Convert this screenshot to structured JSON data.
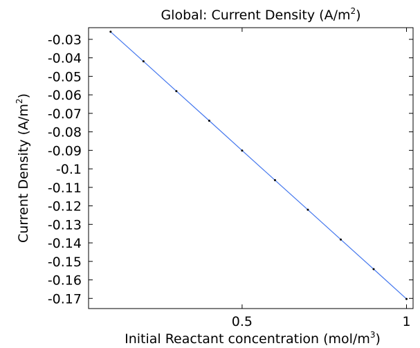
{
  "chart_data": {
    "type": "line",
    "title": {
      "main": "Global: Current Density (A/m",
      "sup": "2",
      "tail": ")"
    },
    "xlabel": {
      "main": "Initial Reactant concentration (mol/m",
      "sup": "3",
      "tail": ")"
    },
    "ylabel": {
      "main": "Current Density (A/m",
      "sup": "2",
      "tail": ")"
    },
    "xlim": [
      0.033,
      1.02
    ],
    "ylim": [
      -0.1755,
      -0.0237
    ],
    "x_ticks": [
      0.5,
      1
    ],
    "x_tick_labels": [
      "0.5",
      "1"
    ],
    "y_ticks": [
      -0.03,
      -0.04,
      -0.05,
      -0.06,
      -0.07,
      -0.08,
      -0.09,
      -0.1,
      -0.11,
      -0.12,
      -0.13,
      -0.14,
      -0.15,
      -0.16,
      -0.17
    ],
    "y_tick_labels": [
      "-0.03",
      "-0.04",
      "-0.05",
      "-0.06",
      "-0.07",
      "-0.08",
      "-0.09",
      "-0.1",
      "-0.11",
      "-0.12",
      "-0.13",
      "-0.14",
      "-0.15",
      "-0.16",
      "-0.17"
    ],
    "grid": false,
    "series": [
      {
        "color": "#4477ee",
        "marker_color": "#000000",
        "x": [
          0.1,
          0.2,
          0.3,
          0.4,
          0.5,
          0.6,
          0.7,
          0.8,
          0.9,
          1.0
        ],
        "y": [
          -0.0259,
          -0.0419,
          -0.058,
          -0.074,
          -0.0901,
          -0.1061,
          -0.1221,
          -0.1382,
          -0.1542,
          -0.1703
        ]
      }
    ]
  }
}
